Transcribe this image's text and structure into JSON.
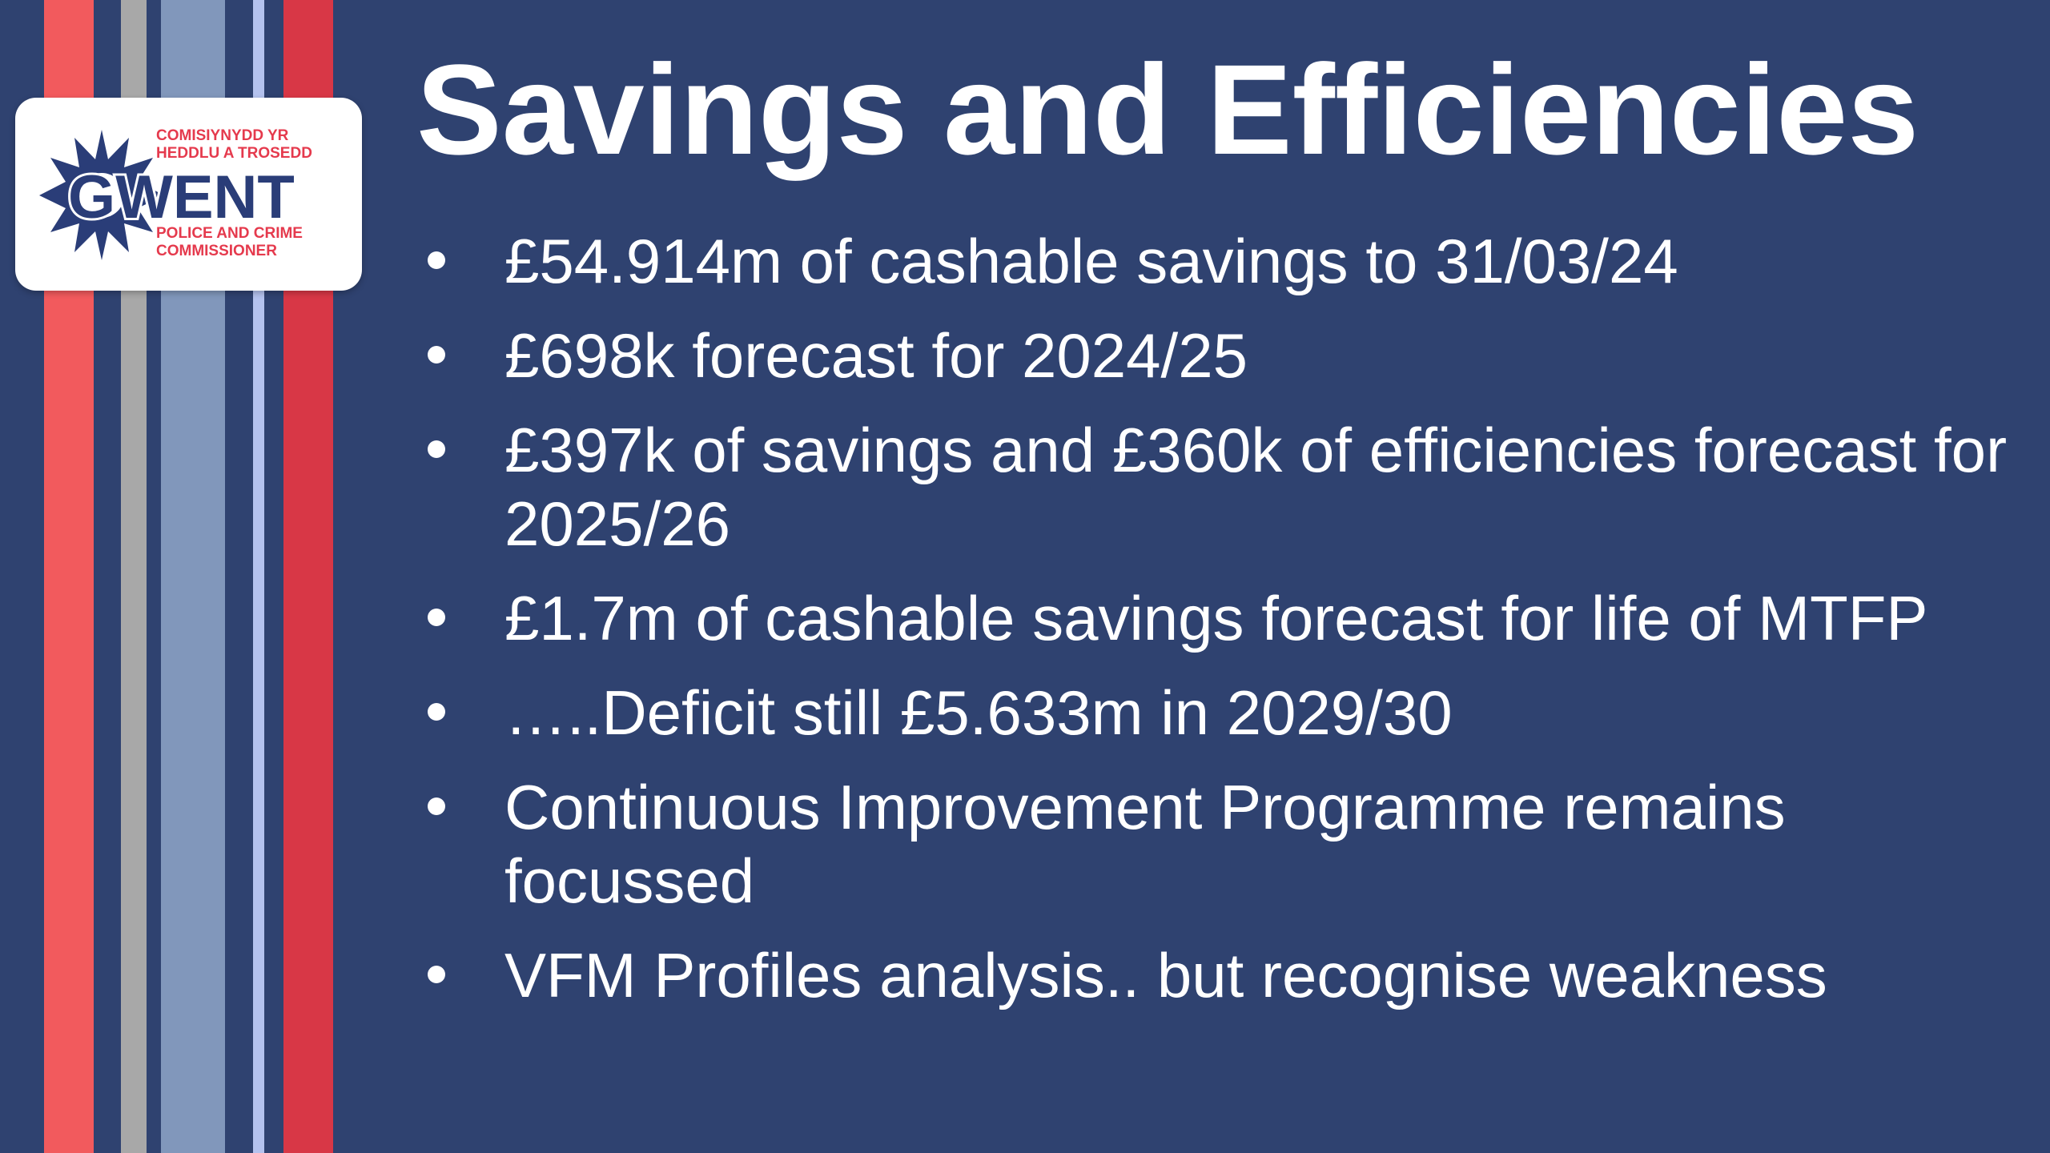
{
  "slide": {
    "title": "Savings and Efficiencies",
    "bullets": [
      "£54.914m of cashable savings to 31/03/24",
      "£698k forecast for 2024/25",
      "£397k of savings and £360k of efficiencies forecast for 2025/26",
      "£1.7m of cashable savings forecast for life of MTFP",
      "…..Deficit still £5.633m in 2029/30",
      "Continuous Improvement Programme remains focussed",
      "VFM Profiles analysis.. but recognise weakness"
    ]
  },
  "logo": {
    "line1": "COMISIYNYDD YR",
    "line2": "HEDDLU A TROSEDD",
    "wordmark": "GWENT",
    "line3": "POLICE AND CRIME",
    "line4": "COMMISSIONER"
  },
  "colors": {
    "background": "#2f4270",
    "brand_red": "#e53a4d",
    "brand_navy": "#2a3d78",
    "stripe_coral": "#f25a5d",
    "stripe_gray": "#a8a8a8",
    "stripe_steel": "#8197bb",
    "stripe_lavender": "#b4c2ee",
    "stripe_red": "#d83746"
  }
}
